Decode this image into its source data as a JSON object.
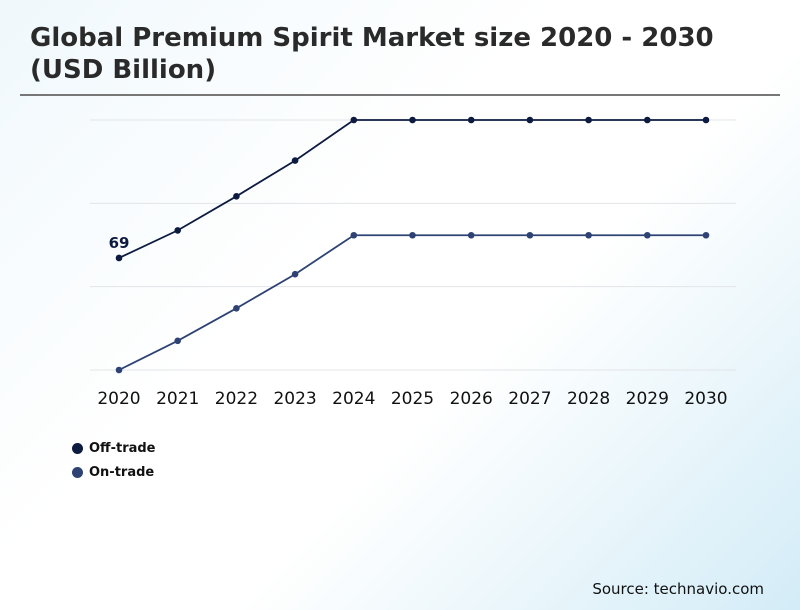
{
  "chart_data": {
    "type": "line",
    "title": "Global Premium Spirit Market size 2020 - 2030 (USD Billion)",
    "xlabel": "",
    "ylabel": "",
    "x": [
      "2020",
      "2021",
      "2022",
      "2023",
      "2024",
      "2025",
      "2026",
      "2027",
      "2028",
      "2029",
      "2030"
    ],
    "ylim": [
      0,
      154
    ],
    "grid": true,
    "legend_position": "bottom-left",
    "series": [
      {
        "name": "Off-trade",
        "color": "#0d1b40",
        "values": [
          69,
          86,
          107,
          129,
          154,
          154,
          154,
          154,
          154,
          154,
          154
        ]
      },
      {
        "name": "On-trade",
        "color": "#2e4374",
        "values": [
          0,
          18,
          38,
          59,
          83,
          83,
          83,
          83,
          83,
          83,
          83
        ]
      }
    ],
    "annotations": [
      {
        "series": "Off-trade",
        "x": "2020",
        "label": "69"
      }
    ]
  },
  "source": "Source: technavio.com"
}
